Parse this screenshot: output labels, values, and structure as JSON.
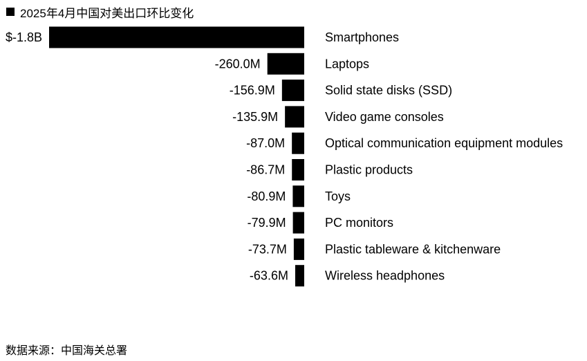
{
  "legend": {
    "label": "2025年4月中国对美出口环比变化",
    "color": "#000000"
  },
  "source": "数据来源：中国海关总署",
  "chart_data": {
    "type": "bar",
    "orientation": "horizontal",
    "series": [
      {
        "name": "2025年4月中国对美出口环比变化",
        "color": "#000000"
      }
    ],
    "categories": [
      "Smartphones",
      "Laptops",
      "Solid state disks (SSD)",
      "Video game consoles",
      "Optical communication equipment modules",
      "Plastic products",
      "Toys",
      "PC monitors",
      "Plastic tableware & kitchenware",
      "Wireless headphones"
    ],
    "values": [
      -1800,
      -260.0,
      -156.9,
      -135.9,
      -87.0,
      -86.7,
      -80.9,
      -79.9,
      -73.7,
      -63.6
    ],
    "value_unit": "M USD",
    "data_labels": [
      "$-1.8B",
      "-260.0M",
      "-156.9M",
      "-135.9M",
      "-87.0M",
      "-86.7M",
      "-80.9M",
      "-79.9M",
      "-73.7M",
      "-63.6M"
    ],
    "xlim": [
      -1800,
      0
    ],
    "grid": false,
    "legend_position": "top-left"
  }
}
